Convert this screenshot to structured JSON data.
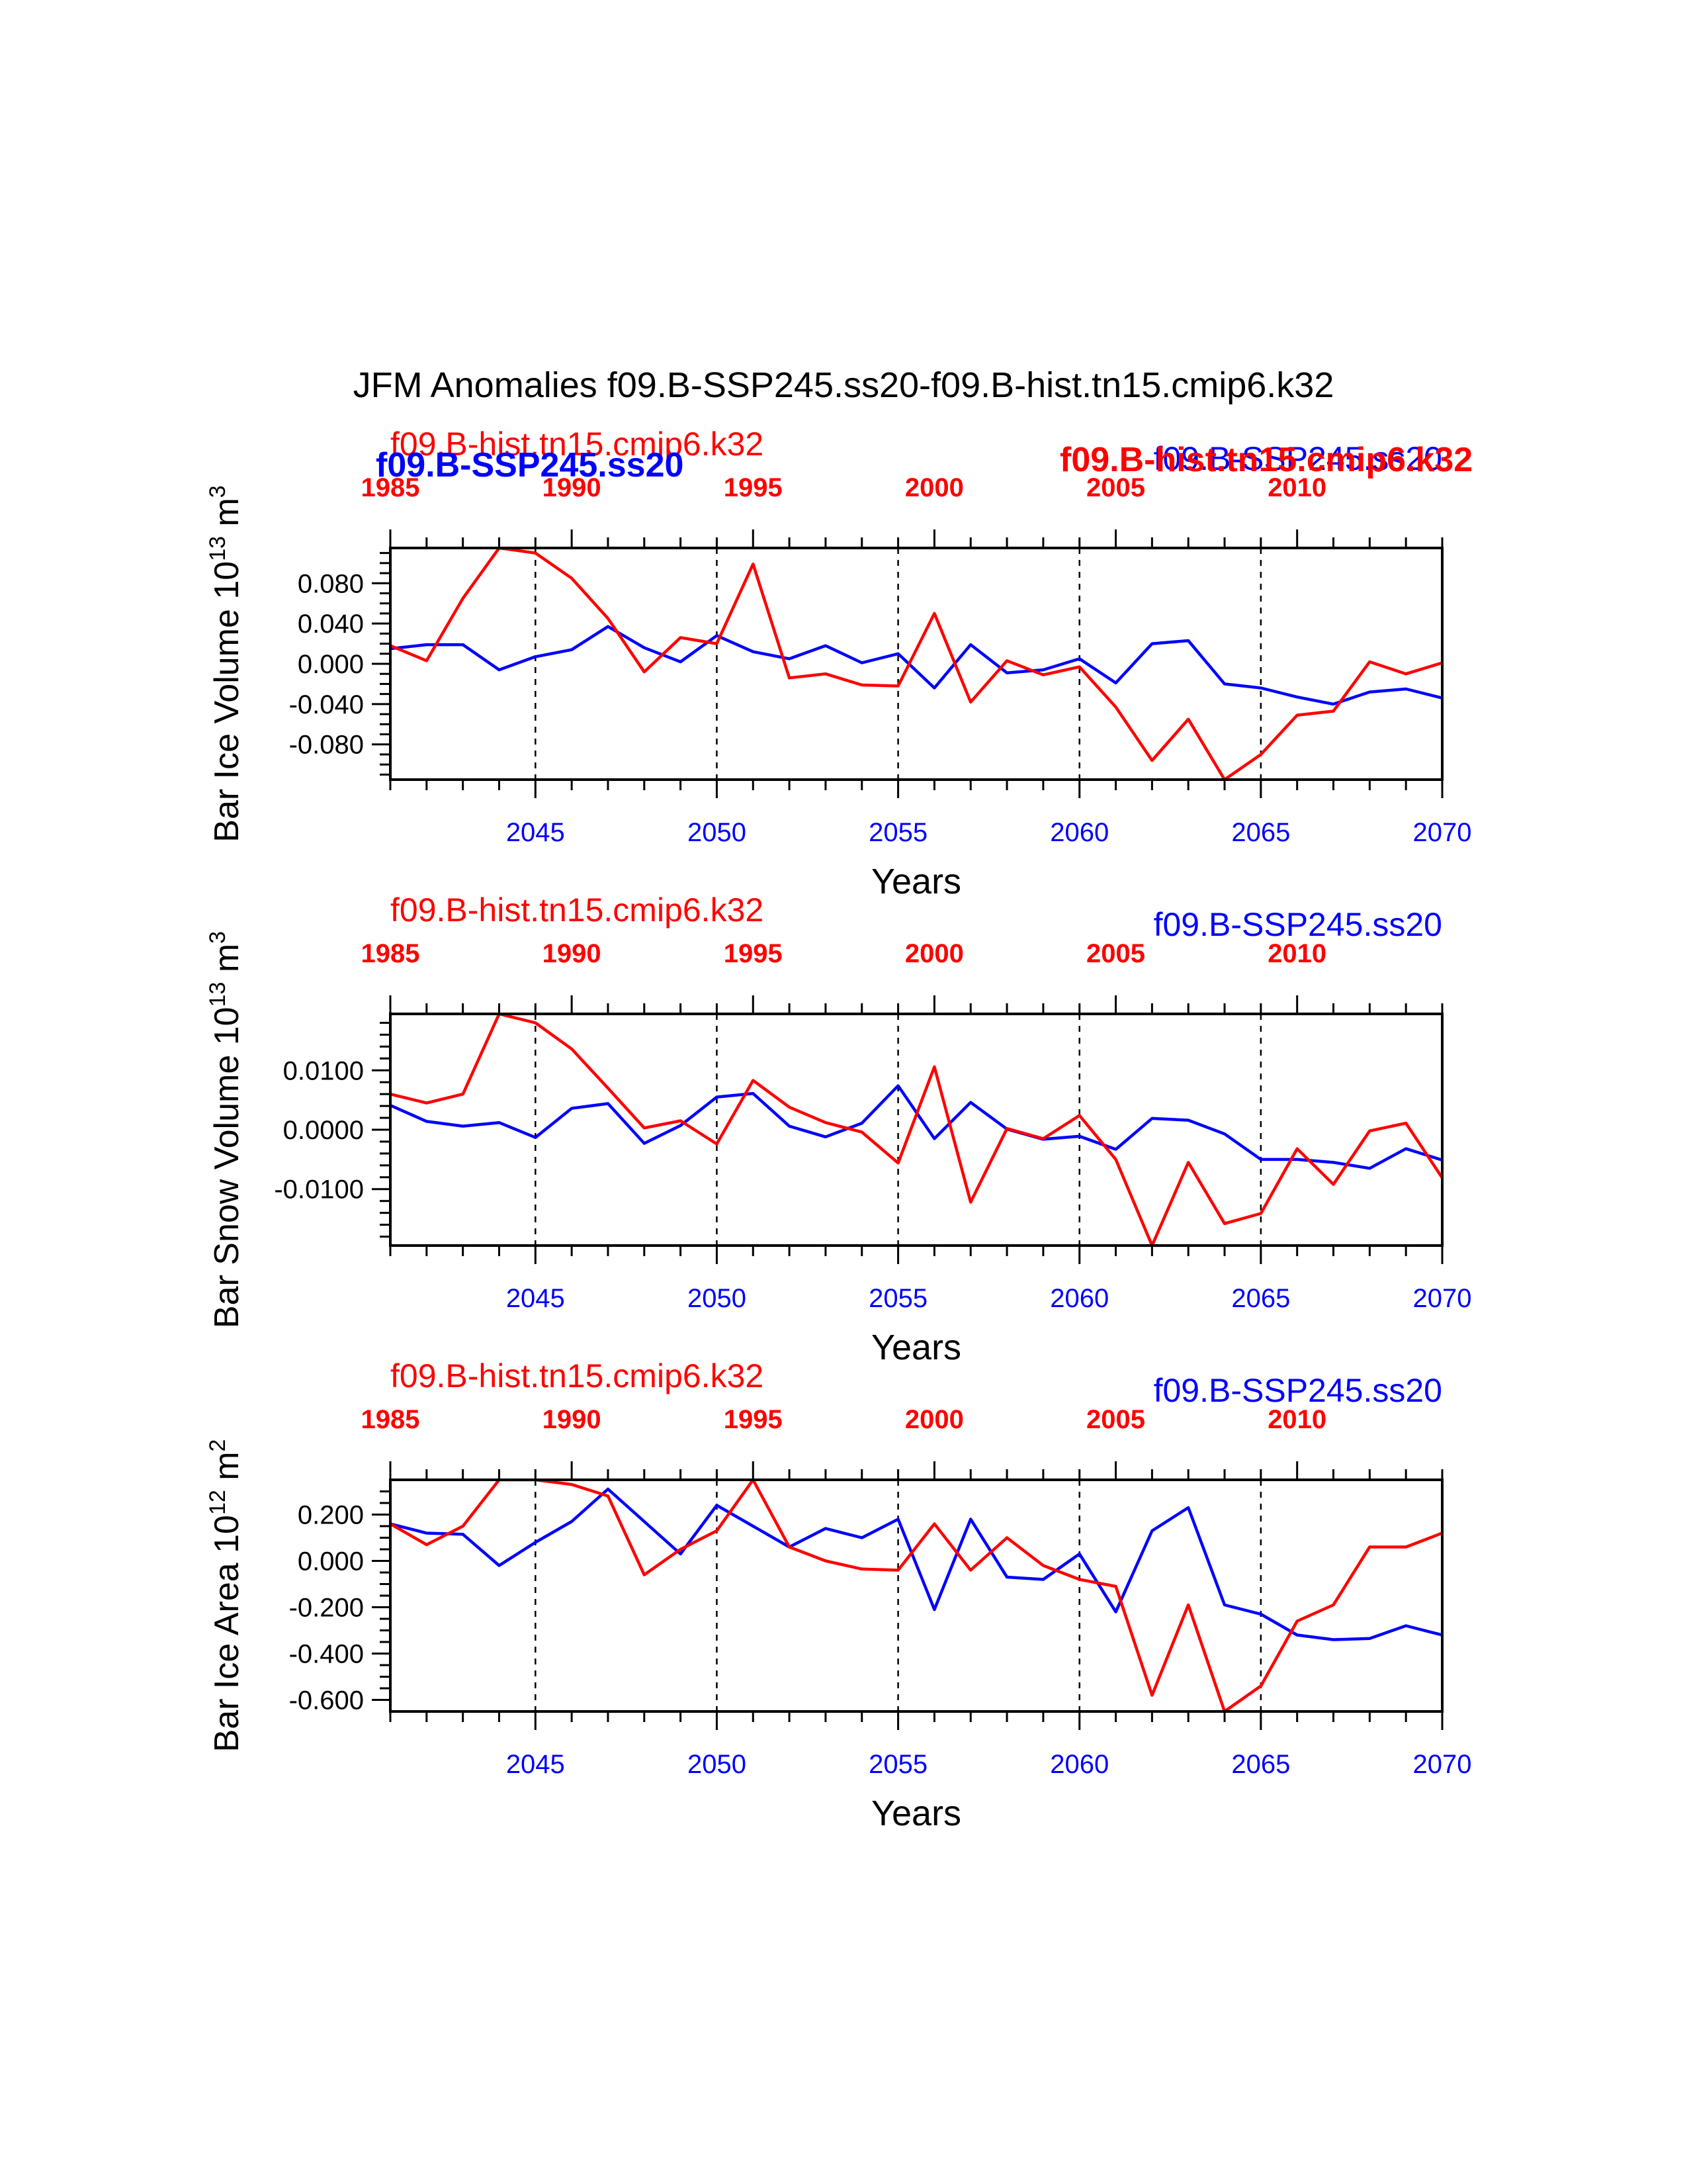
{
  "figure_title": "JFM Anomalies f09.B-SSP245.ss20-f09.B-hist.tn15.cmip6.k32",
  "colors": {
    "future": "#0000ff",
    "hist": "#ff0000",
    "axis": "#000000"
  },
  "overlay_labels": {
    "left_blue": "f09.B-SSP245.ss20",
    "right_red": "f09.B-hist.tn15.cmip6.k32"
  },
  "chart_data": [
    {
      "type": "line",
      "title": "",
      "top_label_left": "f09.B-hist.tn15.cmip6.k32",
      "top_label_right": "f09.B-SSP245.ss20",
      "ylabel": "Bar Ice Volume 10",
      "ylabel_exp": "13",
      "ylabel_unit": " m",
      "ylabel_unit_exp": "3",
      "xlabel": "Years",
      "xlim": [
        2041,
        2070
      ],
      "ylim": [
        -0.115,
        0.115
      ],
      "yticks": [
        0.08,
        0.04,
        0.0,
        -0.04,
        -0.08
      ],
      "ytick_labels": [
        "0.080",
        "0.040",
        "0.000",
        "-0.040",
        "-0.080"
      ],
      "yminor_step": 0.01,
      "bottom_ticks": [
        2045,
        2050,
        2055,
        2060,
        2065,
        2070
      ],
      "top_ticks": [
        1985,
        1990,
        1995,
        2000,
        2005,
        2010
      ],
      "series": [
        {
          "name": "f09.B-SSP245.ss20",
          "x": [
            2041,
            2042,
            2043,
            2044,
            2045,
            2046,
            2047,
            2048,
            2049,
            2050,
            2051,
            2052,
            2053,
            2054,
            2055,
            2056,
            2057,
            2058,
            2059,
            2060,
            2061,
            2062,
            2063,
            2064,
            2065,
            2066,
            2067,
            2068,
            2069,
            2070
          ],
          "values": [
            0.015,
            0.019,
            0.019,
            -0.006,
            0.007,
            0.014,
            0.037,
            0.016,
            0.002,
            0.028,
            0.012,
            0.005,
            0.018,
            0.001,
            0.01,
            -0.024,
            0.019,
            -0.009,
            -0.006,
            0.005,
            -0.019,
            0.02,
            0.023,
            -0.02,
            -0.024,
            -0.033,
            -0.04,
            -0.028,
            -0.025,
            -0.034
          ]
        },
        {
          "name": "f09.B-hist.tn15.cmip6.k32",
          "x": [
            2041,
            2042,
            2043,
            2044,
            2045,
            2046,
            2047,
            2048,
            2049,
            2050,
            2051,
            2052,
            2053,
            2054,
            2055,
            2056,
            2057,
            2058,
            2059,
            2060,
            2061,
            2062,
            2063,
            2064,
            2065,
            2066,
            2067,
            2068,
            2069,
            2070
          ],
          "top_years": [
            1985,
            1986,
            1987,
            1988,
            1989,
            1990,
            1991,
            1992,
            1993,
            1994,
            1995,
            1996,
            1997,
            1998,
            1999,
            2000,
            2001,
            2002,
            2003,
            2004,
            2005,
            2006,
            2007,
            2008,
            2009,
            2010,
            2011,
            2012,
            2013,
            2014
          ],
          "values": [
            0.018,
            0.003,
            0.065,
            0.115,
            0.11,
            0.085,
            0.045,
            -0.008,
            0.026,
            0.02,
            0.099,
            -0.014,
            -0.01,
            -0.021,
            -0.022,
            0.05,
            -0.038,
            0.003,
            -0.011,
            -0.003,
            -0.043,
            -0.096,
            -0.055,
            -0.115,
            -0.09,
            -0.051,
            -0.047,
            0.002,
            -0.01,
            0.001
          ]
        }
      ]
    },
    {
      "type": "line",
      "title": "",
      "top_label_left": "f09.B-hist.tn15.cmip6.k32",
      "top_label_right": "f09.B-SSP245.ss20",
      "ylabel": "Bar Snow Volume 10",
      "ylabel_exp": "13",
      "ylabel_unit": " m",
      "ylabel_unit_exp": "3",
      "xlabel": "Years",
      "xlim": [
        2041,
        2070
      ],
      "ylim": [
        -0.0195,
        0.0195
      ],
      "yticks": [
        0.01,
        0.0,
        -0.01
      ],
      "ytick_labels": [
        "0.0100",
        "0.0000",
        "-0.0100"
      ],
      "yminor_step": 0.002,
      "bottom_ticks": [
        2045,
        2050,
        2055,
        2060,
        2065,
        2070
      ],
      "top_ticks": [
        1985,
        1990,
        1995,
        2000,
        2005,
        2010
      ],
      "series": [
        {
          "name": "f09.B-SSP245.ss20",
          "x": [
            2041,
            2042,
            2043,
            2044,
            2045,
            2046,
            2047,
            2048,
            2049,
            2050,
            2051,
            2052,
            2053,
            2054,
            2055,
            2056,
            2057,
            2058,
            2059,
            2060,
            2061,
            2062,
            2063,
            2064,
            2065,
            2066,
            2067,
            2068,
            2069,
            2070
          ],
          "values": [
            0.0041,
            0.0014,
            0.0006,
            0.0012,
            -0.0013,
            0.0036,
            0.0044,
            -0.0023,
            0.0007,
            0.0055,
            0.0061,
            0.0006,
            -0.0012,
            0.0011,
            0.0074,
            -0.0015,
            0.0046,
            0.0001,
            -0.0016,
            -0.0011,
            -0.0033,
            0.0019,
            0.0016,
            -0.0007,
            -0.005,
            -0.005,
            -0.0055,
            -0.0065,
            -0.0032,
            -0.0051
          ]
        },
        {
          "name": "f09.B-hist.tn15.cmip6.k32",
          "x": [
            2041,
            2042,
            2043,
            2044,
            2045,
            2046,
            2047,
            2048,
            2049,
            2050,
            2051,
            2052,
            2053,
            2054,
            2055,
            2056,
            2057,
            2058,
            2059,
            2060,
            2061,
            2062,
            2063,
            2064,
            2065,
            2066,
            2067,
            2068,
            2069,
            2070
          ],
          "values": [
            0.006,
            0.0045,
            0.006,
            0.0195,
            0.018,
            0.0136,
            0.007,
            0.0003,
            0.0015,
            -0.0024,
            0.0083,
            0.0038,
            0.0012,
            -0.0004,
            -0.0056,
            0.0106,
            -0.0122,
            0.0002,
            -0.0015,
            0.0024,
            -0.005,
            -0.0195,
            -0.0055,
            -0.0158,
            -0.0141,
            -0.0032,
            -0.0092,
            -0.0002,
            0.0011,
            -0.0081
          ]
        }
      ]
    },
    {
      "type": "line",
      "title": "",
      "top_label_left": "f09.B-hist.tn15.cmip6.k32",
      "top_label_right": "f09.B-SSP245.ss20",
      "ylabel": "Bar Ice Area 10",
      "ylabel_exp": "12",
      "ylabel_unit": " m",
      "ylabel_unit_exp": "2",
      "xlabel": "Years",
      "xlim": [
        2041,
        2070
      ],
      "ylim": [
        -0.65,
        0.35
      ],
      "yticks": [
        0.2,
        0.0,
        -0.2,
        -0.4,
        -0.6
      ],
      "ytick_labels": [
        "0.200",
        "0.000",
        "-0.200",
        "-0.400",
        "-0.600"
      ],
      "yminor_step": 0.05,
      "bottom_ticks": [
        2045,
        2050,
        2055,
        2060,
        2065,
        2070
      ],
      "top_ticks": [
        1985,
        1990,
        1995,
        2000,
        2005,
        2010
      ],
      "series": [
        {
          "name": "f09.B-SSP245.ss20",
          "x": [
            2041,
            2042,
            2043,
            2044,
            2045,
            2046,
            2047,
            2048,
            2049,
            2050,
            2051,
            2052,
            2053,
            2054,
            2055,
            2056,
            2057,
            2058,
            2059,
            2060,
            2061,
            2062,
            2063,
            2064,
            2065,
            2066,
            2067,
            2068,
            2069,
            2070
          ],
          "values": [
            0.16,
            0.12,
            0.115,
            -0.02,
            0.08,
            0.17,
            0.31,
            0.17,
            0.03,
            0.24,
            0.15,
            0.06,
            0.14,
            0.1,
            0.18,
            -0.21,
            0.18,
            -0.07,
            -0.08,
            0.03,
            -0.22,
            0.13,
            0.23,
            -0.19,
            -0.23,
            -0.32,
            -0.34,
            -0.335,
            -0.28,
            -0.32
          ]
        },
        {
          "name": "f09.B-hist.tn15.cmip6.k32",
          "x": [
            2041,
            2042,
            2043,
            2044,
            2045,
            2046,
            2047,
            2048,
            2049,
            2050,
            2051,
            2052,
            2053,
            2054,
            2055,
            2056,
            2057,
            2058,
            2059,
            2060,
            2061,
            2062,
            2063,
            2064,
            2065,
            2066,
            2067,
            2068,
            2069,
            2070
          ],
          "values": [
            0.16,
            0.07,
            0.15,
            0.35,
            0.35,
            0.33,
            0.28,
            -0.06,
            0.05,
            0.13,
            0.35,
            0.06,
            0.0,
            -0.035,
            -0.04,
            0.16,
            -0.04,
            0.1,
            -0.02,
            -0.08,
            -0.11,
            -0.58,
            -0.19,
            -0.65,
            -0.54,
            -0.26,
            -0.19,
            0.06,
            0.06,
            0.12
          ]
        }
      ]
    }
  ]
}
